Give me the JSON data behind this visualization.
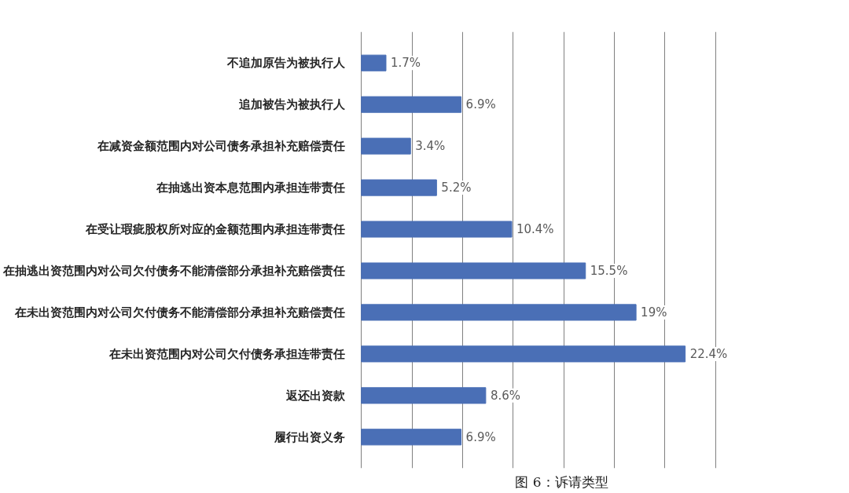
{
  "chart_data": {
    "type": "bar",
    "orientation": "horizontal",
    "title": "图 6：诉请类型",
    "categories": [
      "不追加原告为被执行人",
      "追加被告为被执行人",
      "在减资金额范围内对公司债务承担补充赔偿责任",
      "在抽逃出资本息范围内承担连带责任",
      "在受让瑕疵股权所对应的金额范围内承担连带责任",
      "在抽逃出资范围内对公司欠付债务不能清偿部分承担补充赔偿责任",
      "在未出资范围内对公司欠付债务不能清偿部分承担补充赔偿责任",
      "在未出资范围内对公司欠付债务承担连带责任",
      "返还出资款",
      "履行出资义务"
    ],
    "values": [
      1.7,
      6.9,
      3.4,
      5.2,
      10.4,
      15.5,
      19,
      22.4,
      8.6,
      6.9
    ],
    "value_labels": [
      "1.7%",
      "6.9%",
      "3.4%",
      "5.2%",
      "10.4%",
      "15.5%",
      "19%",
      "22.4%",
      "8.6%",
      "6.9%"
    ],
    "color": "#4a6fb6",
    "grid": "x",
    "tick_labels": "y"
  }
}
